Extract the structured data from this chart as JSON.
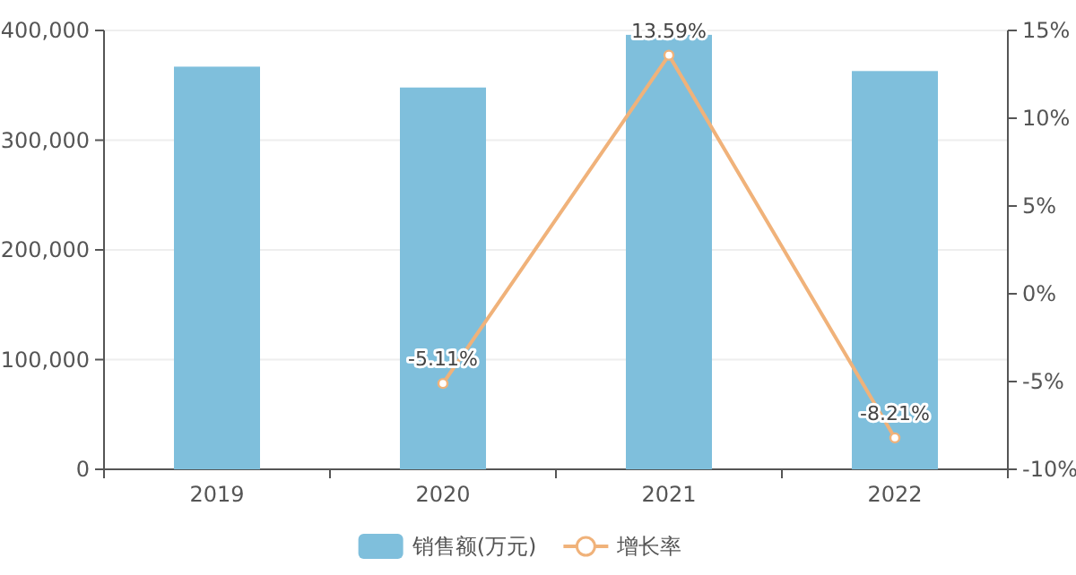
{
  "chart_data": {
    "type": "bar",
    "categories": [
      "2019",
      "2020",
      "2021",
      "2022"
    ],
    "series": [
      {
        "name": "销售额(万元)",
        "color": "#7fbfdc",
        "values": [
          367000,
          348000,
          396000,
          363000
        ]
      },
      {
        "name": "增长率",
        "type": "line",
        "axis": "y2",
        "color": "#f0b27a",
        "values": [
          null,
          -5.11,
          13.59,
          -8.21
        ],
        "value_labels": [
          null,
          "-5.11%",
          "13.59%",
          "-8.21%"
        ]
      }
    ],
    "ylim": [
      0,
      400000
    ],
    "yticks": [
      0,
      {
        "value": 100000,
        "label": "100,000"
      },
      {
        "value": 200000,
        "label": "200,000"
      },
      {
        "value": 300000,
        "label": "300,000"
      },
      {
        "value": 400000,
        "label": "400,000"
      }
    ],
    "y2lim": [
      -10,
      15
    ],
    "y2ticks": [
      {
        "value": -10,
        "label": "-10%"
      },
      {
        "value": -5,
        "label": "-5%"
      },
      {
        "value": 0,
        "label": "0%"
      },
      {
        "value": 5,
        "label": "5%"
      },
      {
        "value": 10,
        "label": "10%"
      },
      {
        "value": 15,
        "label": "15%"
      }
    ],
    "grid": "y",
    "legend": "bottom",
    "marker": "circle",
    "line_style": "solid"
  }
}
